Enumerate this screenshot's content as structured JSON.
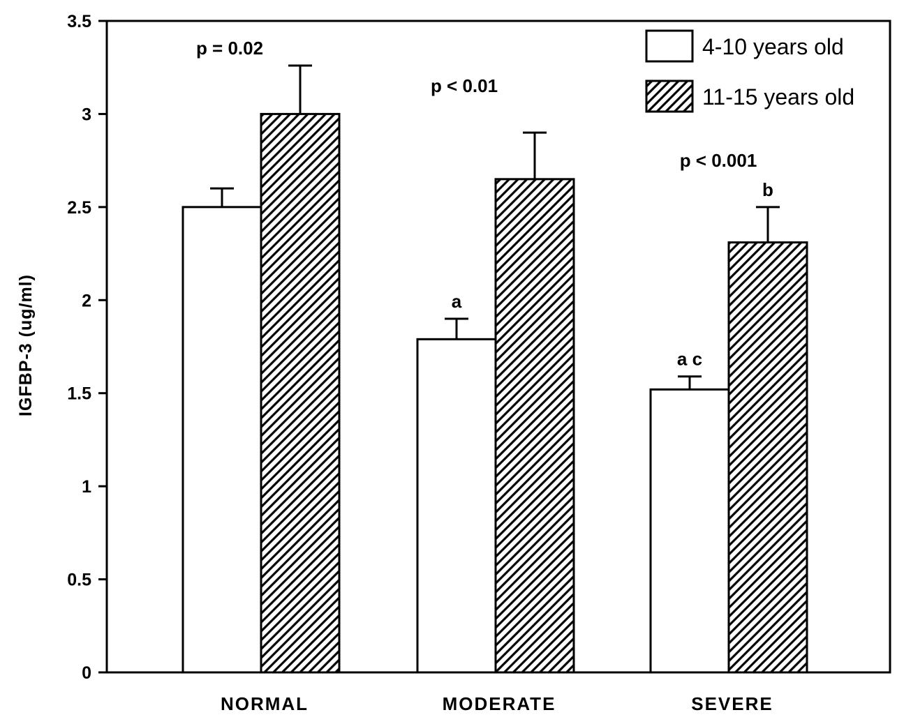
{
  "chart_data": {
    "type": "bar",
    "title": "",
    "xlabel": "",
    "ylabel": "IGFBP-3 (ug/ml)",
    "ylim": [
      0,
      3.5
    ],
    "yticks": [
      0,
      0.5,
      1,
      1.5,
      2,
      2.5,
      3,
      3.5
    ],
    "ytick_labels": [
      "0",
      "0.5",
      "1",
      "1.5",
      "2",
      "2.5",
      "3",
      "3.5"
    ],
    "categories": [
      "NORMAL",
      "MODERATE",
      "SEVERE"
    ],
    "series": [
      {
        "name": "4-10 years old",
        "fill": "open",
        "values": [
          2.5,
          1.79,
          1.52
        ],
        "errors": [
          0.1,
          0.11,
          0.07
        ],
        "letters": [
          "",
          "a",
          "a c"
        ]
      },
      {
        "name": "11-15 years old",
        "fill": "hatched",
        "values": [
          3.0,
          2.65,
          2.31
        ],
        "errors": [
          0.26,
          0.25,
          0.19
        ],
        "letters": [
          "",
          "",
          "b"
        ]
      }
    ],
    "p_values": [
      "p = 0.02",
      "p < 0.01",
      "p < 0.001"
    ],
    "legend": {
      "placement": "top-right",
      "entries": [
        "4-10 years old",
        "11-15 years old"
      ]
    },
    "grid": false,
    "colors": {
      "bar_stroke": "#000000",
      "open_fill": "#ffffff",
      "hatch": "#000000"
    }
  }
}
